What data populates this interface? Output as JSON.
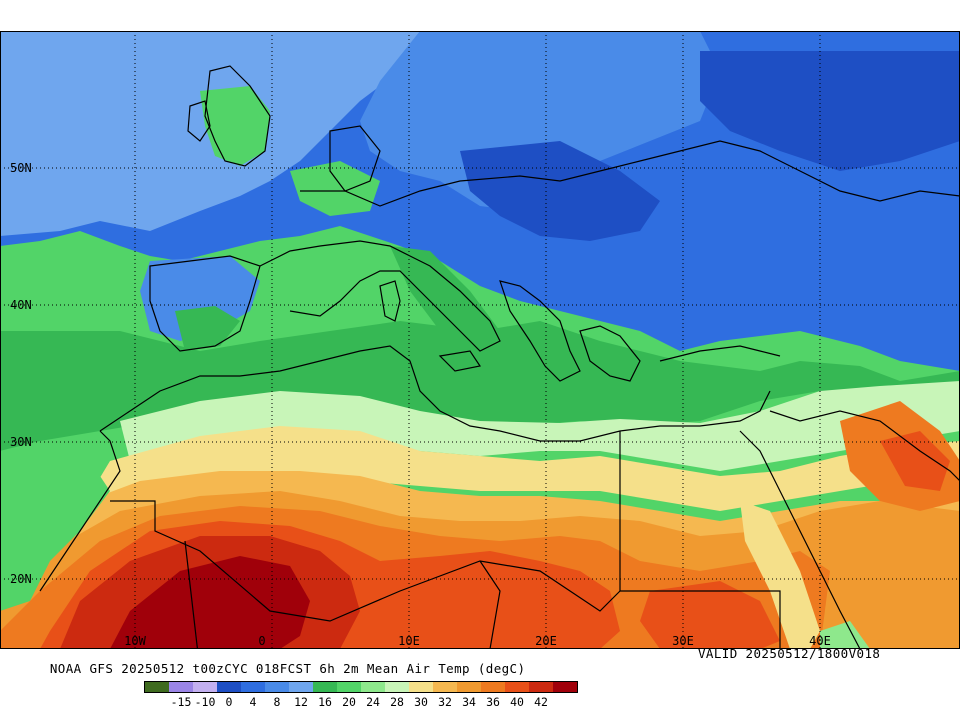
{
  "map": {
    "title": "NOAA GFS 20250512 t00zCYC 018FCST 6h 2m Mean Air Temp (degC)",
    "valid": "VALID 20250512/1800V018",
    "lat_labels": [
      "50N",
      "40N",
      "30N",
      "20N"
    ],
    "lon_labels": [
      "10W",
      "0",
      "10E",
      "20E",
      "30E",
      "40E"
    ],
    "colorbar": {
      "colors": [
        "#3f6b1f",
        "#9b85e6",
        "#c3b0f0",
        "#1e4fc4",
        "#2f6ee0",
        "#4a8be8",
        "#6fa6ee",
        "#36b854",
        "#52d468",
        "#8ee88c",
        "#c8f5b8",
        "#f5e08a",
        "#f5b850",
        "#f09a30",
        "#ee7a20",
        "#e85018",
        "#cc2a10",
        "#a0000a"
      ],
      "labels": [
        "-15",
        "-10",
        "0",
        "4",
        "8",
        "12",
        "16",
        "20",
        "24",
        "28",
        "30",
        "32",
        "34",
        "36",
        "40",
        "42"
      ]
    }
  }
}
